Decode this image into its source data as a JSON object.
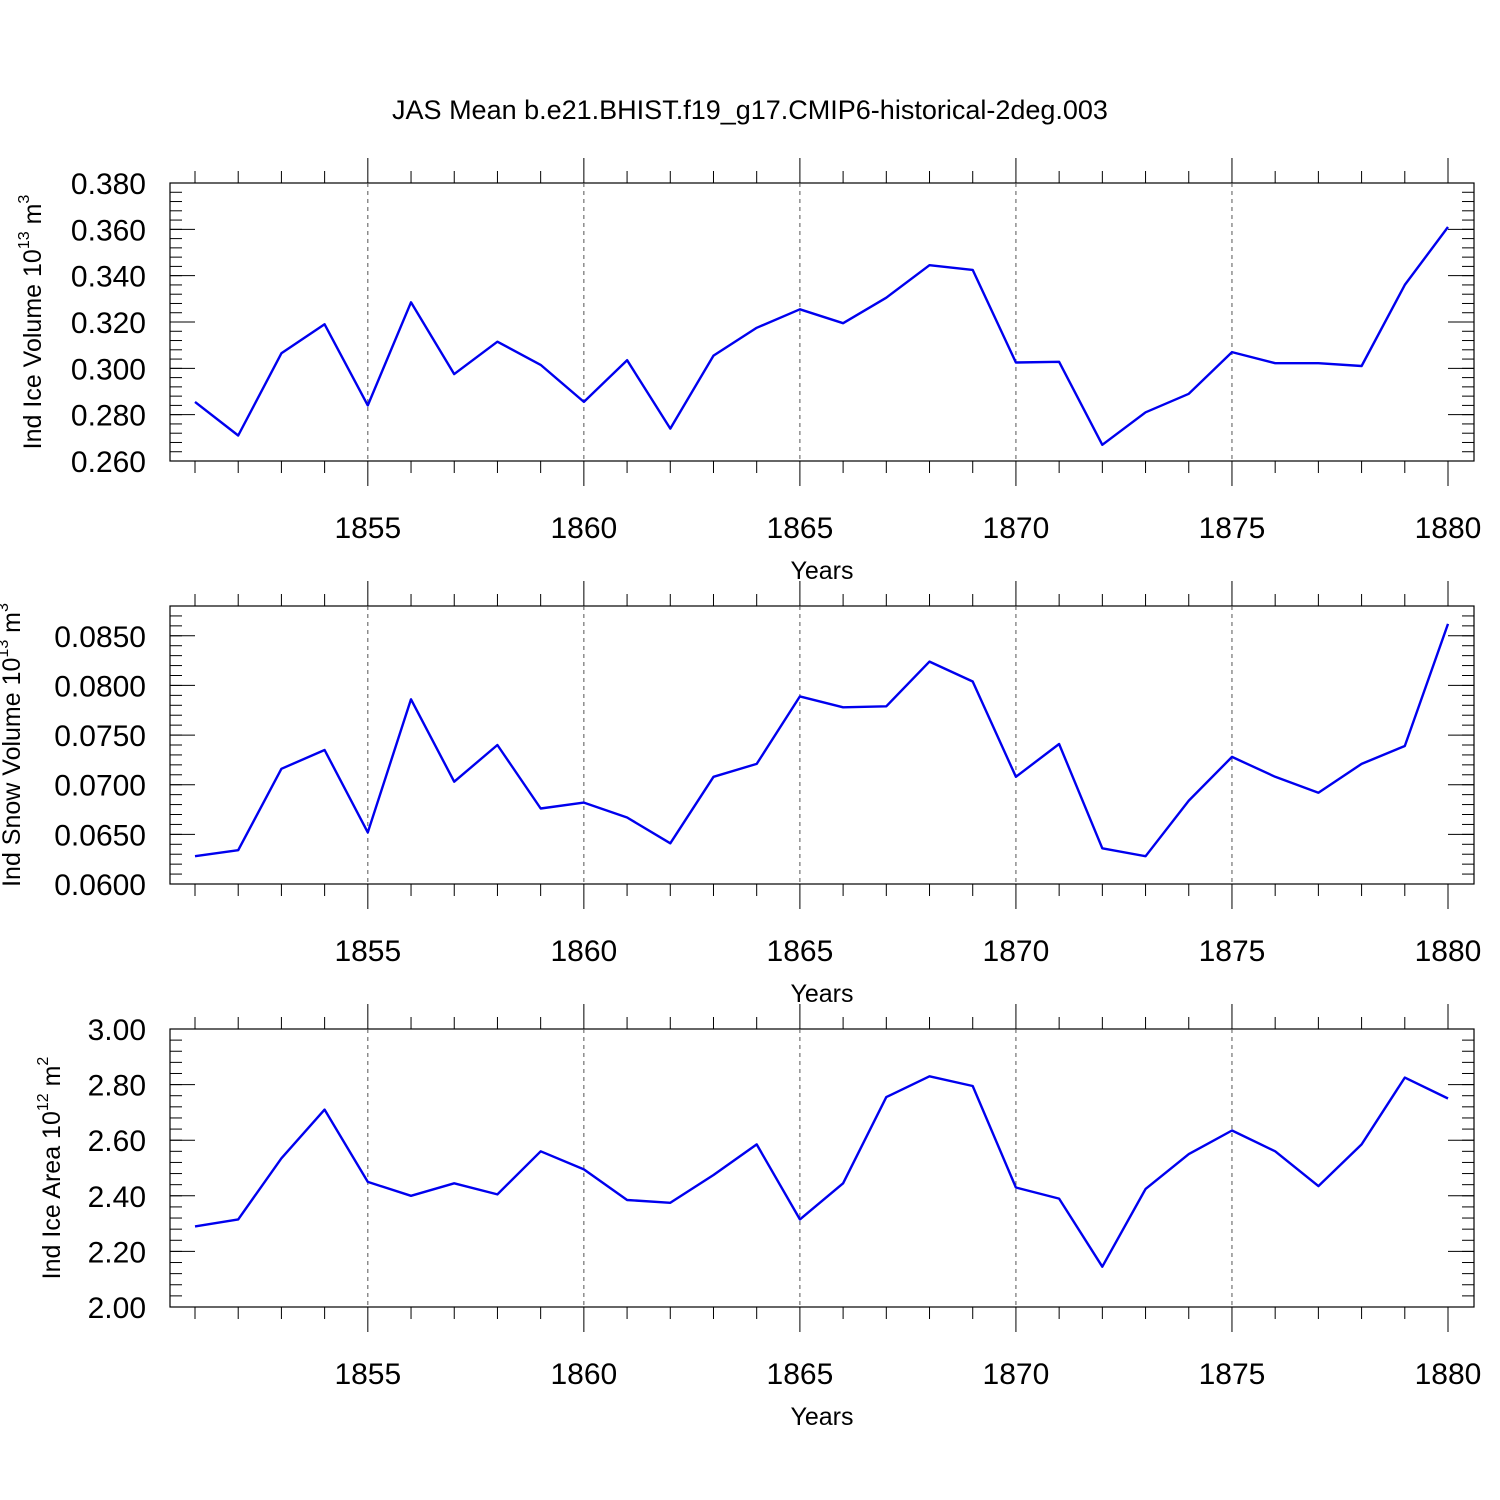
{
  "title": "JAS Mean b.e21.BHIST.f19_g17.CMIP6-historical-2deg.003",
  "line_color": "#0000ee",
  "chart_data": [
    {
      "type": "line",
      "ylabel": "Ind Ice Volume 10",
      "ylabel_exp": "13",
      "ylabel_unit": " m",
      "ylabel_unit_exp": "3",
      "xlabel": "Years",
      "xlim": [
        1851,
        1880
      ],
      "ylim": [
        0.26,
        0.38
      ],
      "yticks": [
        0.26,
        0.28,
        0.3,
        0.32,
        0.34,
        0.36,
        0.38
      ],
      "ytick_labels": [
        "0.260",
        "0.280",
        "0.300",
        "0.320",
        "0.340",
        "0.360",
        "0.380"
      ],
      "yminor_step": 0.004,
      "xticks": [
        1855,
        1860,
        1865,
        1870,
        1875,
        1880
      ],
      "xtick_labels": [
        "1855",
        "1860",
        "1865",
        "1870",
        "1875",
        "1880"
      ],
      "x": [
        1851,
        1852,
        1853,
        1854,
        1855,
        1856,
        1857,
        1858,
        1859,
        1860,
        1861,
        1862,
        1863,
        1864,
        1865,
        1866,
        1867,
        1868,
        1869,
        1870,
        1871,
        1872,
        1873,
        1874,
        1875,
        1876,
        1877,
        1878,
        1879,
        1880
      ],
      "y": [
        0.2855,
        0.271,
        0.3065,
        0.319,
        0.284,
        0.3285,
        0.2975,
        0.3115,
        0.3015,
        0.2855,
        0.3035,
        0.274,
        0.3055,
        0.3175,
        0.3255,
        0.3195,
        0.3305,
        0.3445,
        0.3425,
        0.3025,
        0.3028,
        0.267,
        0.281,
        0.289,
        0.307,
        0.3022,
        0.3022,
        0.301,
        0.336,
        0.361
      ],
      "grid": "x-dashed"
    },
    {
      "type": "line",
      "ylabel": "Ind Snow Volume 10",
      "ylabel_exp": "13",
      "ylabel_unit": " m",
      "ylabel_unit_exp": "3",
      "xlabel": "Years",
      "xlim": [
        1851,
        1880
      ],
      "ylim": [
        0.06,
        0.088
      ],
      "yticks": [
        0.06,
        0.065,
        0.07,
        0.075,
        0.08,
        0.085
      ],
      "ytick_labels": [
        "0.0600",
        "0.0650",
        "0.0700",
        "0.0750",
        "0.0800",
        "0.0850"
      ],
      "yminor_step": 0.001,
      "xticks": [
        1855,
        1860,
        1865,
        1870,
        1875,
        1880
      ],
      "xtick_labels": [
        "1855",
        "1860",
        "1865",
        "1870",
        "1875",
        "1880"
      ],
      "x": [
        1851,
        1852,
        1853,
        1854,
        1855,
        1856,
        1857,
        1858,
        1859,
        1860,
        1861,
        1862,
        1863,
        1864,
        1865,
        1866,
        1867,
        1868,
        1869,
        1870,
        1871,
        1872,
        1873,
        1874,
        1875,
        1876,
        1877,
        1878,
        1879,
        1880
      ],
      "y": [
        0.0628,
        0.0634,
        0.0716,
        0.0735,
        0.0652,
        0.0786,
        0.0703,
        0.074,
        0.0676,
        0.0682,
        0.0667,
        0.0641,
        0.0708,
        0.0721,
        0.0789,
        0.0778,
        0.0779,
        0.0824,
        0.0804,
        0.0708,
        0.0741,
        0.0636,
        0.0628,
        0.0684,
        0.0728,
        0.0708,
        0.0692,
        0.0721,
        0.0739,
        0.0862
      ],
      "grid": "x-dashed"
    },
    {
      "type": "line",
      "ylabel": "Ind Ice Area 10",
      "ylabel_exp": "12",
      "ylabel_unit": " m",
      "ylabel_unit_exp": "2",
      "xlabel": "Years",
      "xlim": [
        1851,
        1880
      ],
      "ylim": [
        2.0,
        3.0
      ],
      "yticks": [
        2.0,
        2.2,
        2.4,
        2.6,
        2.8,
        3.0
      ],
      "ytick_labels": [
        "2.00",
        "2.20",
        "2.40",
        "2.60",
        "2.80",
        "3.00"
      ],
      "yminor_step": 0.04,
      "xticks": [
        1855,
        1860,
        1865,
        1870,
        1875,
        1880
      ],
      "xtick_labels": [
        "1855",
        "1860",
        "1865",
        "1870",
        "1875",
        "1880"
      ],
      "x": [
        1851,
        1852,
        1853,
        1854,
        1855,
        1856,
        1857,
        1858,
        1859,
        1860,
        1861,
        1862,
        1863,
        1864,
        1865,
        1866,
        1867,
        1868,
        1869,
        1870,
        1871,
        1872,
        1873,
        1874,
        1875,
        1876,
        1877,
        1878,
        1879,
        1880
      ],
      "y": [
        2.29,
        2.315,
        2.535,
        2.71,
        2.45,
        2.4,
        2.445,
        2.405,
        2.56,
        2.495,
        2.385,
        2.375,
        2.475,
        2.585,
        2.315,
        2.445,
        2.755,
        2.83,
        2.795,
        2.43,
        2.39,
        2.145,
        2.425,
        2.55,
        2.635,
        2.56,
        2.435,
        2.585,
        2.825,
        2.75
      ],
      "grid": "x-dashed"
    }
  ]
}
